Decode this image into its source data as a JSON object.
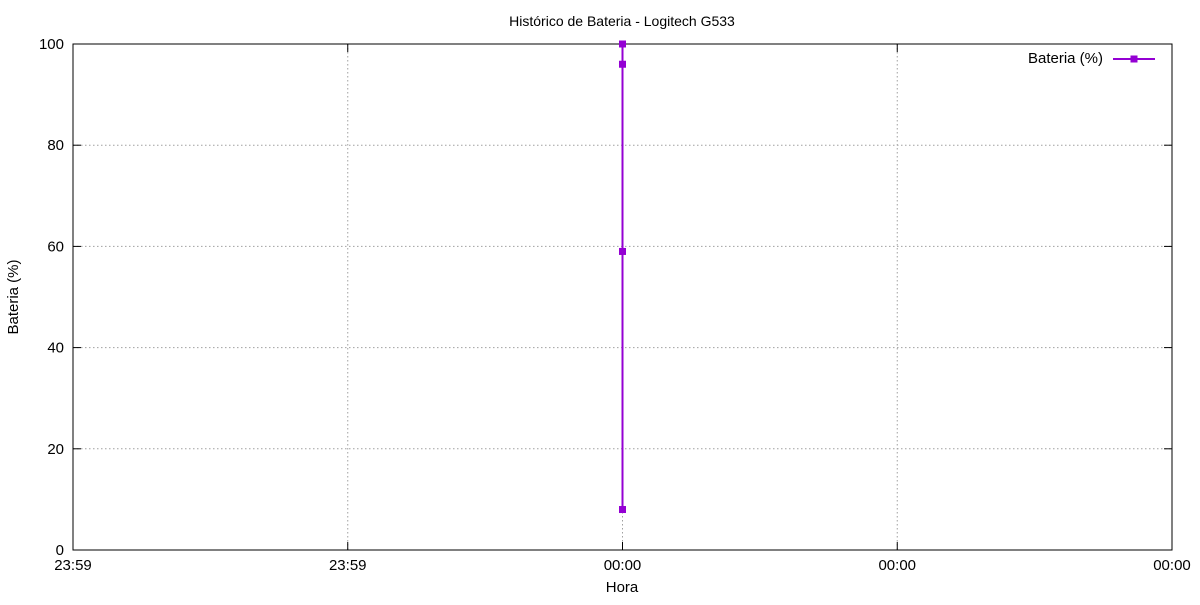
{
  "chart_data": {
    "type": "line",
    "title": "Histórico de Bateria - Logitech G533",
    "xlabel": "Hora",
    "ylabel": "Bateria (%)",
    "x_tick_labels": [
      "23:59",
      "23:59",
      "00:00",
      "00:00",
      "00:00"
    ],
    "y_ticks": [
      0,
      20,
      40,
      60,
      80,
      100
    ],
    "ylim": [
      0,
      100
    ],
    "grid": true,
    "legend_position": "top-right",
    "series": [
      {
        "name": "Bateria (%)",
        "color": "#9400d3",
        "marker": "square",
        "x": [
          "00:00",
          "00:00",
          "00:00",
          "00:00"
        ],
        "values": [
          8,
          59,
          96,
          100
        ]
      }
    ]
  }
}
